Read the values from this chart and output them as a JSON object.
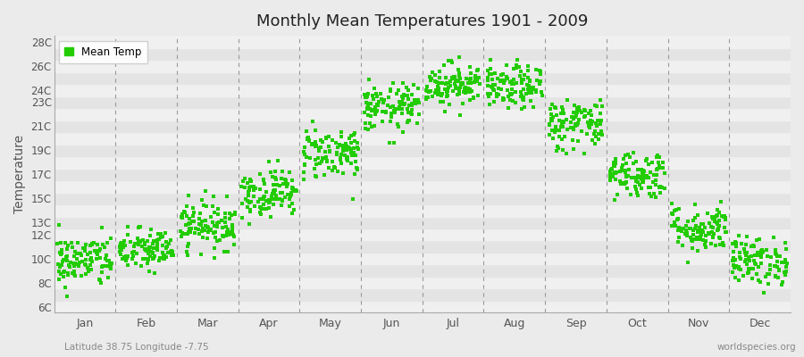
{
  "title": "Monthly Mean Temperatures 1901 - 2009",
  "ylabel": "Temperature",
  "xlabel_bottom_left": "Latitude 38.75 Longitude -7.75",
  "xlabel_bottom_right": "worldspecies.org",
  "legend_label": "Mean Temp",
  "dot_color": "#22CC00",
  "background_color": "#EBEBEB",
  "band_light": "#E8E8E8",
  "band_white": "#F8F8F8",
  "ylim": [
    5.5,
    28.5
  ],
  "months": [
    "Jan",
    "Feb",
    "Mar",
    "Apr",
    "May",
    "Jun",
    "Jul",
    "Aug",
    "Sep",
    "Oct",
    "Nov",
    "Dec"
  ],
  "xlim": [
    0,
    12
  ],
  "num_years": 109,
  "mean_temps": [
    9.8,
    10.7,
    12.8,
    15.5,
    18.8,
    22.5,
    24.5,
    24.2,
    21.2,
    17.0,
    12.5,
    9.8
  ],
  "std_temps": [
    1.1,
    0.9,
    1.0,
    1.0,
    1.1,
    1.0,
    0.9,
    0.9,
    1.1,
    1.0,
    1.0,
    1.0
  ],
  "seed": 42,
  "labeled_yticks": [
    6,
    8,
    10,
    12,
    13,
    15,
    17,
    19,
    21,
    23,
    24,
    26,
    28
  ],
  "band_yticks": [
    6,
    7,
    8,
    9,
    10,
    11,
    12,
    13,
    14,
    15,
    16,
    17,
    18,
    19,
    20,
    21,
    22,
    23,
    24,
    25,
    26,
    27,
    28
  ]
}
